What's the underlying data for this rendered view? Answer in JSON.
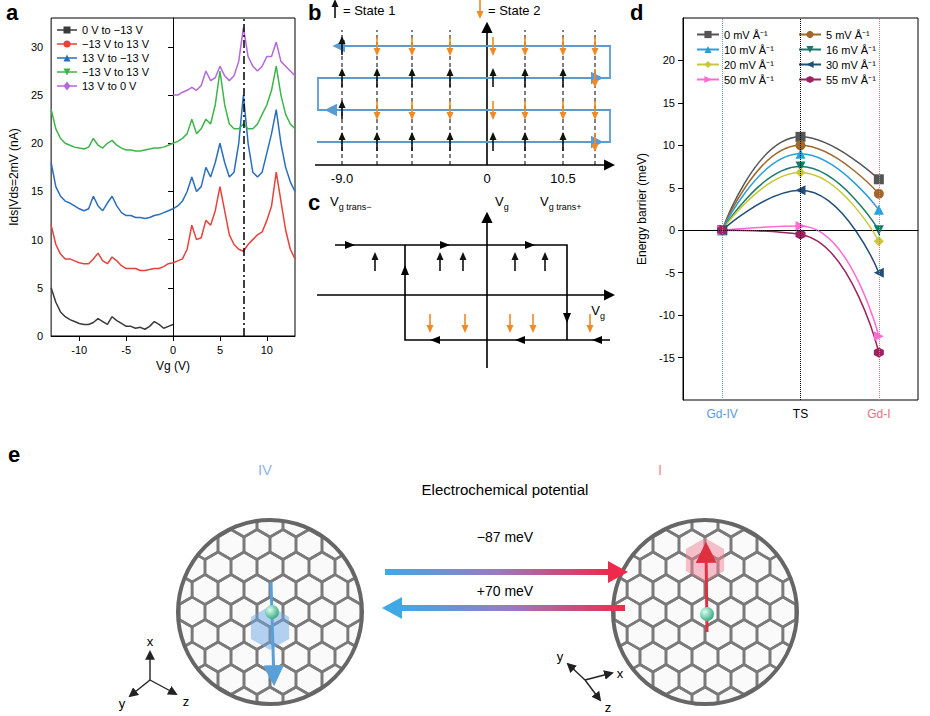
{
  "chart_data": [
    {
      "type": "line",
      "letter": "a",
      "x_label": "Vg (V)",
      "y_label": "Ids|Vds=2mV (nA)",
      "x": [
        -13,
        -12.5,
        -12,
        -11.5,
        -11,
        -10.5,
        -10,
        -9.5,
        -9,
        -8.5,
        -8,
        -7.5,
        -7,
        -6.5,
        -6,
        -5.5,
        -5,
        -4.5,
        -4,
        -3.5,
        -3,
        -2.5,
        -2,
        -1.5,
        -1,
        -0.5,
        0,
        0.5,
        1,
        1.5,
        2,
        2.5,
        3,
        3.5,
        4,
        4.5,
        5,
        5.5,
        6,
        6.5,
        7,
        7.5,
        8,
        8.5,
        9,
        9.5,
        10,
        10.5,
        11,
        11.5,
        12,
        12.5,
        13
      ],
      "xlim": [
        -13,
        13
      ],
      "xticks": [
        -10,
        -5,
        0,
        5,
        10
      ],
      "ylim": [
        0,
        33
      ],
      "yticks": [
        0,
        5,
        10,
        15,
        20,
        25,
        30
      ],
      "legend": "upper left",
      "grid": false,
      "vline": {
        "x": 7.5,
        "line_style": "dashdot"
      },
      "series": [
        {
          "name": "0 V to −13 V",
          "color": "#3a3a3a",
          "marker": "square",
          "values": [
            5,
            3.5,
            2.5,
            2,
            1.7,
            1.5,
            1.3,
            1.2,
            1.2,
            1.4,
            1.8,
            1.5,
            1.2,
            2,
            1.6,
            1.3,
            1,
            1,
            0.8,
            0.9,
            0.7,
            1,
            1.5,
            1.2,
            0.8,
            1,
            1.2,
            null,
            null,
            null,
            null,
            null,
            null,
            null,
            null,
            null,
            null,
            null,
            null,
            null,
            null,
            null,
            null,
            null,
            null,
            null,
            null,
            null,
            null,
            null,
            null,
            null,
            null
          ]
        },
        {
          "name": "−13 V to 13 V",
          "color": "#e8413a",
          "marker": "circle",
          "values": [
            11.5,
            9.5,
            8.5,
            8,
            8,
            7.8,
            7.6,
            7.5,
            7.5,
            8,
            8.6,
            7.8,
            7.5,
            8.2,
            7.8,
            7.3,
            7,
            7,
            7,
            6.8,
            6.8,
            6.9,
            7,
            7,
            7.2,
            7.5,
            7.6,
            7.8,
            8,
            9,
            11.5,
            10,
            10.2,
            12,
            11.5,
            13,
            15.5,
            13,
            10.5,
            9.5,
            9,
            8.8,
            9.5,
            10,
            10.5,
            10.8,
            12,
            13.5,
            17,
            14,
            11,
            9,
            8
          ]
        },
        {
          "name": "13 V to −13 V",
          "color": "#2a6ebb",
          "marker": "triangle-up",
          "values": [
            18,
            15.5,
            14.5,
            14,
            13.8,
            13.5,
            13.2,
            13,
            13.2,
            14.5,
            13.5,
            13,
            13.8,
            14.5,
            13.5,
            12.8,
            12.5,
            12.5,
            12.3,
            12.3,
            12.2,
            12.3,
            12.5,
            12.6,
            12.8,
            13,
            13.2,
            13.5,
            14,
            15,
            16.5,
            15,
            15.5,
            17.5,
            16.5,
            18,
            20,
            18,
            16.5,
            17,
            20,
            25,
            20,
            17,
            16.5,
            17,
            19,
            21,
            23.5,
            20,
            17.5,
            16,
            15
          ]
        },
        {
          "name": "−13 V to 13 V",
          "color": "#3cb54a",
          "marker": "triangle-down",
          "values": [
            23.5,
            21.5,
            20.5,
            20,
            19.8,
            19.6,
            19.5,
            19.4,
            19.6,
            20.5,
            19.8,
            19.5,
            20,
            20.3,
            19.8,
            19.5,
            19.3,
            19.3,
            19.2,
            19.2,
            19.3,
            19.4,
            19.5,
            19.5,
            19.6,
            19.8,
            20,
            20.2,
            20.5,
            21,
            22.5,
            21,
            21.5,
            22.5,
            22,
            24,
            27.5,
            24,
            22,
            21.5,
            21.5,
            22,
            21.5,
            21.5,
            22,
            23,
            24,
            25.5,
            28,
            25,
            23,
            22,
            21.5
          ]
        },
        {
          "name": "13 V to 0 V",
          "color": "#b36ad6",
          "marker": "diamond",
          "values": [
            null,
            null,
            null,
            null,
            null,
            null,
            null,
            null,
            null,
            null,
            null,
            null,
            null,
            null,
            null,
            null,
            null,
            null,
            null,
            null,
            null,
            null,
            null,
            null,
            null,
            null,
            25,
            25,
            25.3,
            25.5,
            25.8,
            25.5,
            26,
            27.5,
            26.5,
            26.8,
            28,
            27,
            26.5,
            27,
            28.5,
            32,
            29,
            28,
            27.5,
            28,
            29,
            29,
            30.5,
            28.5,
            28,
            27.5,
            27
          ]
        }
      ]
    },
    {
      "type": "line",
      "letter": "d",
      "y_label": "Energy barrier (meV)",
      "categories": [
        "Gd-IV",
        "TS",
        "Gd-I"
      ],
      "ylim": [
        -20,
        25
      ],
      "yticks": [
        -15,
        -10,
        -5,
        0,
        5,
        10,
        15,
        20
      ],
      "hline": 0,
      "legend": "top",
      "grid": false,
      "series": [
        {
          "name": "0 mV Å⁻¹",
          "color": "#555555",
          "marker": "square",
          "values": [
            0,
            11,
            6
          ]
        },
        {
          "name": "5 mV Å⁻¹",
          "color": "#a0662a",
          "marker": "circle",
          "values": [
            0,
            10,
            4.3
          ]
        },
        {
          "name": "10 mV Å⁻¹",
          "color": "#2a9fd6",
          "marker": "triangle-up",
          "values": [
            0,
            9,
            2.4
          ]
        },
        {
          "name": "16 mV Å⁻¹",
          "color": "#1a7a6a",
          "marker": "triangle-down",
          "values": [
            0,
            7.5,
            0
          ]
        },
        {
          "name": "20 mV Å⁻¹",
          "color": "#c8c83a",
          "marker": "diamond",
          "values": [
            0,
            6.8,
            -1.3
          ]
        },
        {
          "name": "30 mV Å⁻¹",
          "color": "#1f4e79",
          "marker": "triangle-left",
          "values": [
            0,
            4.7,
            -5
          ]
        },
        {
          "name": "50 mV Å⁻¹",
          "color": "#ff6ad5",
          "marker": "triangle-right",
          "values": [
            0,
            0.5,
            -12.5
          ]
        },
        {
          "name": "55 mV Å⁻¹",
          "color": "#a02060",
          "marker": "hexagon",
          "values": [
            0,
            -0.5,
            -14.4
          ]
        }
      ]
    }
  ],
  "diagrams": {
    "b": {
      "letter": "b",
      "legend": [
        {
          "label": "= State 1",
          "color": "#111111"
        },
        {
          "label": "= State 2",
          "color": "#f08a24"
        }
      ],
      "axis_labels": [
        "-9.0",
        "0",
        "10.5"
      ]
    },
    "c": {
      "letter": "c",
      "labels": [
        "Vg trans−",
        "Vg",
        "Vg trans+"
      ],
      "axis_label": "Vg"
    },
    "e": {
      "letter": "e",
      "left_label": "IV",
      "right_label": "I",
      "title": "Electrochemical potential",
      "forward": "−87 meV",
      "backward": "+70 meV",
      "left_axes": [
        "x",
        "y",
        "z"
      ],
      "right_axes": [
        "x",
        "y",
        "z"
      ]
    }
  }
}
